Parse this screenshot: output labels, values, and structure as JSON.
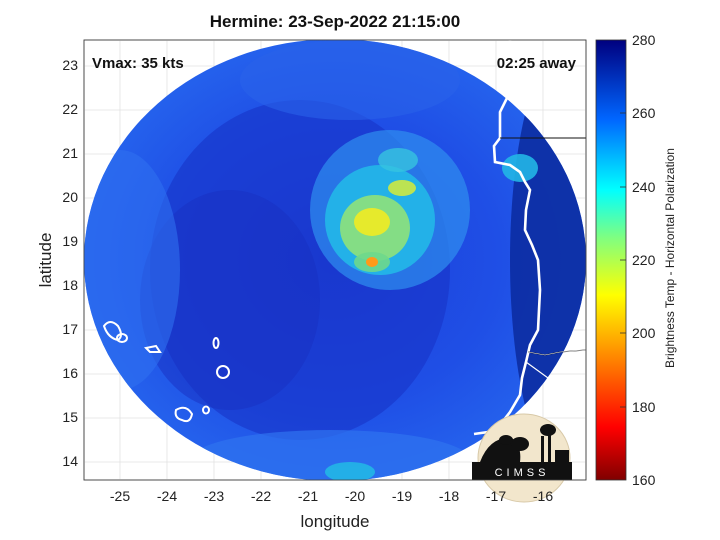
{
  "title": "Hermine: 23-Sep-2022 21:15:00",
  "vmax_label": "Vmax: 35 kts",
  "away_label": "02:25 away",
  "axes": {
    "xlabel": "longitude",
    "ylabel": "latitude",
    "x_ticks": [
      "-25",
      "-24",
      "-23",
      "-22",
      "-21",
      "-20",
      "-19",
      "-18",
      "-17",
      "-16"
    ],
    "y_ticks": [
      "23",
      "22",
      "21",
      "20",
      "19",
      "18",
      "17",
      "16",
      "15",
      "14"
    ],
    "xlim": [
      -25.8,
      -15.3
    ],
    "ylim": [
      13.6,
      23.6
    ]
  },
  "colorbar": {
    "label": "Brightness Temp - Horizontal Polarization",
    "ticks": [
      "280",
      "260",
      "240",
      "220",
      "200",
      "180",
      "160"
    ],
    "range": [
      160,
      280
    ]
  },
  "logo": {
    "text": "CIMSS"
  },
  "colors": {
    "background_field": "#1f4fe0",
    "coast": "#ffffff"
  }
}
